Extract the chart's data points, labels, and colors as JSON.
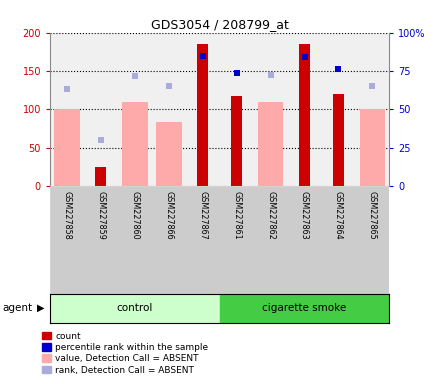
{
  "title": "GDS3054 / 208799_at",
  "samples": [
    "GSM227858",
    "GSM227859",
    "GSM227860",
    "GSM227866",
    "GSM227867",
    "GSM227861",
    "GSM227862",
    "GSM227863",
    "GSM227864",
    "GSM227865"
  ],
  "n_ctrl": 5,
  "n_smk": 5,
  "count": [
    0,
    25,
    0,
    0,
    185,
    117,
    0,
    185,
    120,
    0
  ],
  "percentile_rank": [
    null,
    null,
    null,
    null,
    170,
    148,
    null,
    168,
    153,
    null
  ],
  "value_absent": [
    100,
    0,
    110,
    83,
    0,
    0,
    110,
    0,
    0,
    100
  ],
  "rank_absent": [
    127,
    60,
    143,
    130,
    null,
    148,
    145,
    null,
    null,
    130
  ],
  "count_color": "#cc0000",
  "percentile_color": "#0000cc",
  "value_absent_color": "#ffaaaa",
  "rank_absent_color": "#aaaadd",
  "ylim_left": [
    0,
    200
  ],
  "ylim_right": [
    0,
    100
  ],
  "yticks_left": [
    0,
    50,
    100,
    150,
    200
  ],
  "ytick_labels_left": [
    "0",
    "50",
    "100",
    "150",
    "200"
  ],
  "yticks_right": [
    0,
    25,
    50,
    75,
    100
  ],
  "ytick_labels_right": [
    "0",
    "25",
    "50",
    "75",
    "100%"
  ],
  "control_label": "control",
  "smoke_label": "cigarette smoke",
  "agent_label": "agent",
  "control_color_light": "#ccffcc",
  "smoke_color_dark": "#44cc44",
  "legend_items": [
    {
      "label": "count",
      "color": "#cc0000"
    },
    {
      "label": "percentile rank within the sample",
      "color": "#0000cc"
    },
    {
      "label": "value, Detection Call = ABSENT",
      "color": "#ffaaaa"
    },
    {
      "label": "rank, Detection Call = ABSENT",
      "color": "#aaaadd"
    }
  ],
  "bw_val": 0.75,
  "bw_count": 0.32,
  "marker_size": 4.5
}
